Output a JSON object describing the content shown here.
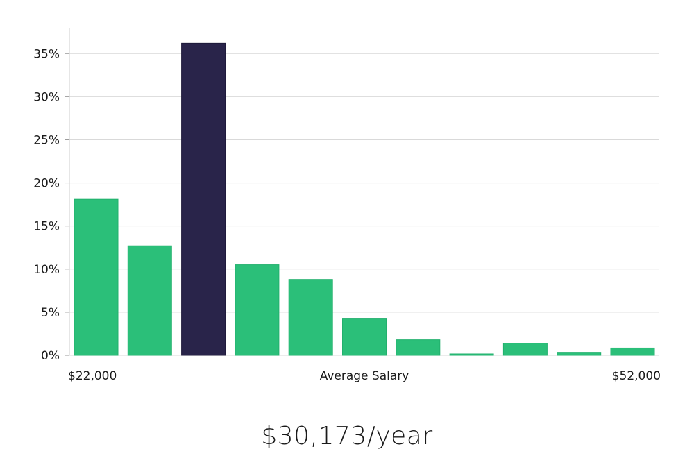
{
  "chart_data": {
    "type": "bar",
    "title": "",
    "xlabel": "Average Salary",
    "ylabel": "",
    "x_range_labels": {
      "min": "$22,000",
      "max": "$52,000"
    },
    "ylim": [
      0,
      38
    ],
    "yticks": [
      0,
      5,
      10,
      15,
      20,
      25,
      30,
      35
    ],
    "ytick_labels": [
      "0%",
      "5%",
      "10%",
      "15%",
      "20%",
      "25%",
      "30%",
      "35%"
    ],
    "values": [
      18.1,
      12.7,
      36.2,
      10.5,
      8.8,
      4.3,
      1.8,
      0.1,
      1.4,
      0.35,
      0.85
    ],
    "highlight_index": 2,
    "colors": {
      "bar": "#2bbf79",
      "highlight": "#29244a",
      "grid": "#d9d9d9",
      "axis": "#cccccc"
    }
  },
  "summary": {
    "salary_text": "$30,173/year"
  }
}
